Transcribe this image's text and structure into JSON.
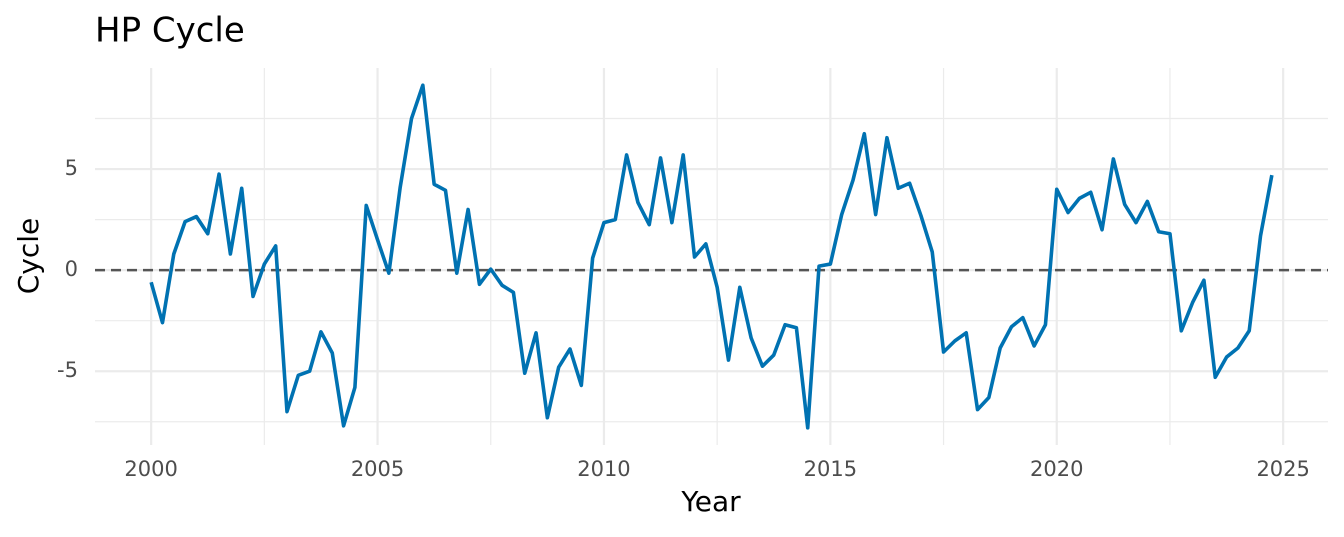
{
  "chart_data": {
    "type": "line",
    "title": "HP Cycle",
    "x_label": "Year",
    "y_label": "Cycle",
    "x": [
      2000,
      2000.25,
      2000.5,
      2000.75,
      2001,
      2001.25,
      2001.5,
      2001.75,
      2002,
      2002.25,
      2002.5,
      2002.75,
      2003,
      2003.25,
      2003.5,
      2003.75,
      2004,
      2004.25,
      2004.5,
      2004.75,
      2005,
      2005.25,
      2005.5,
      2005.75,
      2006,
      2006.25,
      2006.5,
      2006.75,
      2007,
      2007.25,
      2007.5,
      2007.75,
      2008,
      2008.25,
      2008.5,
      2008.75,
      2009,
      2009.25,
      2009.5,
      2009.75,
      2010,
      2010.25,
      2010.5,
      2010.75,
      2011,
      2011.25,
      2011.5,
      2011.75,
      2012,
      2012.25,
      2012.5,
      2012.75,
      2013,
      2013.25,
      2013.5,
      2013.75,
      2014,
      2014.25,
      2014.5,
      2014.75,
      2015,
      2015.25,
      2015.5,
      2015.75,
      2016,
      2016.25,
      2016.5,
      2016.75,
      2017,
      2017.25,
      2017.5,
      2017.75,
      2018,
      2018.25,
      2018.5,
      2018.75,
      2019,
      2019.25,
      2019.5,
      2019.75,
      2020,
      2020.25,
      2020.5,
      2020.75,
      2021,
      2021.25,
      2021.5,
      2021.75,
      2022,
      2022.25,
      2022.5,
      2022.75,
      2023,
      2023.25,
      2023.5,
      2023.75,
      2024,
      2024.25,
      2024.5,
      2024.75
    ],
    "values": [
      -0.6,
      -2.6,
      0.8,
      2.4,
      2.65,
      1.8,
      4.75,
      0.8,
      4.05,
      -1.3,
      0.3,
      1.2,
      -7.0,
      -5.2,
      -5.0,
      -3.05,
      -4.1,
      -7.7,
      -5.8,
      3.2,
      1.5,
      -0.15,
      4.1,
      7.5,
      9.15,
      4.25,
      3.95,
      -0.15,
      3.0,
      -0.7,
      0.05,
      -0.75,
      -1.1,
      -5.1,
      -3.1,
      -7.3,
      -4.8,
      -3.9,
      -5.7,
      0.6,
      2.35,
      2.5,
      5.7,
      3.35,
      2.25,
      5.55,
      2.35,
      5.7,
      0.65,
      1.3,
      -0.85,
      -4.45,
      -0.85,
      -3.35,
      -4.75,
      -4.2,
      -2.7,
      -2.85,
      -7.8,
      0.2,
      0.3,
      2.75,
      4.45,
      6.75,
      2.75,
      6.55,
      4.05,
      4.3,
      2.7,
      0.9,
      -4.05,
      -3.5,
      -3.1,
      -6.9,
      -6.3,
      -3.85,
      -2.8,
      -2.35,
      -3.75,
      -2.7,
      4.0,
      2.85,
      3.55,
      3.85,
      2.0,
      5.5,
      3.25,
      2.35,
      3.4,
      1.9,
      1.8,
      -3.0,
      -1.6,
      -0.5,
      -5.3,
      -4.3,
      -3.85,
      -3.0,
      1.7,
      4.7
    ],
    "color": "#0072b2",
    "xlim": [
      1998.76,
      2025.99
    ],
    "xticks": [
      2000,
      2005,
      2010,
      2015,
      2020,
      2025
    ],
    "ylim": [
      -8.65,
      10.0
    ],
    "yticks": [
      -5,
      0,
      5
    ],
    "grid": true,
    "minor_grid": true,
    "hline": 0,
    "hline_color": "#555555"
  }
}
